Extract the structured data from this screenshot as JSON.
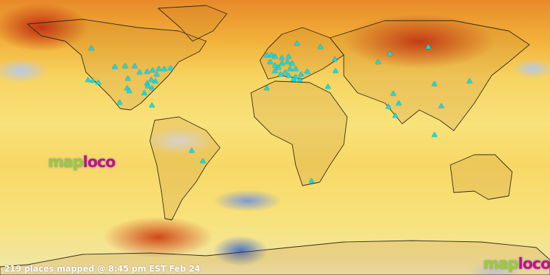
{
  "status_text": "219 places mapped @ 8:45 pm EST Feb 24",
  "logo": {
    "part1": "map",
    "part2": "loco"
  },
  "colors": {
    "marker": "#00e0f0",
    "logo_green": "#9ccc2c",
    "logo_magenta": "#c4127c",
    "status_text": "#ffffff"
  },
  "marker_icon": "triangle-icon"
}
